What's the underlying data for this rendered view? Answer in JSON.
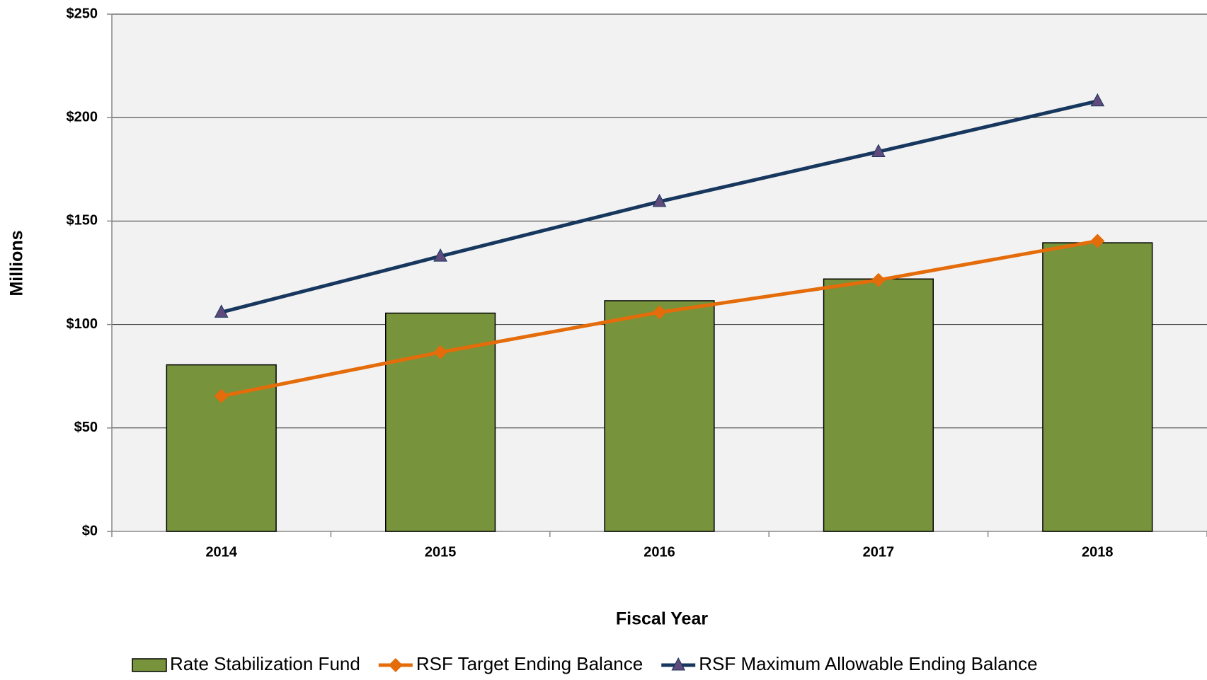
{
  "chart_data": {
    "type": "bar",
    "categories": [
      "2014",
      "2015",
      "2016",
      "2017",
      "2018"
    ],
    "xlabel": "Fiscal Year",
    "ylabel": "Millions",
    "ylim": [
      0,
      250
    ],
    "yticks": [
      {
        "value": 0,
        "label": "$0"
      },
      {
        "value": 50,
        "label": "$50"
      },
      {
        "value": 100,
        "label": "$100"
      },
      {
        "value": 150,
        "label": "$150"
      },
      {
        "value": 200,
        "label": "$200"
      },
      {
        "value": 250,
        "label": "$250"
      }
    ],
    "grid": true,
    "legend": "bottom",
    "series": [
      {
        "name": "Rate Stabilization Fund",
        "type": "bar",
        "color": "#77933c",
        "values": [
          80.5,
          105.5,
          111.5,
          122,
          139.5
        ]
      },
      {
        "name": "RSF Target Ending Balance",
        "type": "line",
        "marker": "diamond",
        "color": "#e46c0a",
        "values": [
          65.4,
          86.6,
          105.9,
          121.5,
          140.4
        ]
      },
      {
        "name": "RSF Maximum Allowable Ending Balance",
        "type": "line",
        "marker": "triangle",
        "color": "#17375e",
        "markerColor": "#604a7b",
        "values": [
          105.9,
          133,
          159.4,
          183.5,
          208
        ]
      }
    ]
  }
}
